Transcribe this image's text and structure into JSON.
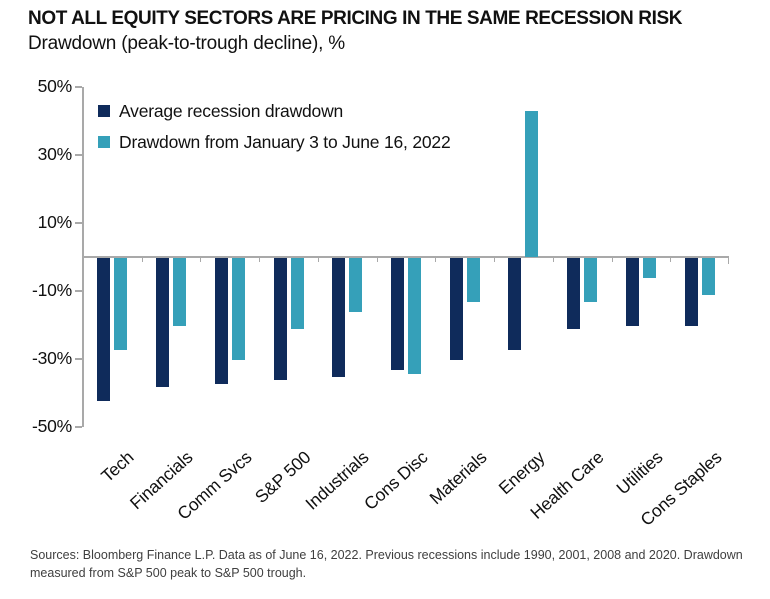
{
  "chart_data": {
    "type": "bar",
    "title": "NOT ALL EQUITY SECTORS ARE PRICING IN THE SAME RECESSION RISK",
    "subtitle": "Drawdown (peak-to-trough decline), %",
    "unit": "%",
    "categories": [
      "Tech",
      "Financials",
      "Comm Svcs",
      "S&P 500",
      "Industrials",
      "Cons Disc",
      "Materials",
      "Energy",
      "Health Care",
      "Utilities",
      "Cons Staples"
    ],
    "series": [
      {
        "name": "Average recession drawdown",
        "color": "#0F2B5B",
        "values": [
          -42,
          -38,
          -37,
          -36,
          -35,
          -33,
          -30,
          -27,
          -21,
          -20,
          -20
        ]
      },
      {
        "name": "Drawdown from January 3 to June 16, 2022",
        "color": "#35A0B9",
        "values": [
          -27,
          -20,
          -30,
          -21,
          -16,
          -34,
          -13,
          43,
          -13,
          -6,
          -11
        ]
      }
    ],
    "ylim": [
      -50,
      50
    ],
    "yticks": [
      50,
      30,
      10,
      -10,
      -30,
      -50
    ],
    "ytick_labels": [
      "50%",
      "30%",
      "10%",
      "-10%",
      "-30%",
      "-50%"
    ],
    "grid": false,
    "legend_position": "top-left",
    "axis_color": "#A9A9A9"
  },
  "footer": {
    "source_text": "Sources: Bloomberg Finance L.P. Data as of June 16, 2022. Previous recessions include 1990, 2001, 2008 and 2020. Drawdown measured from S&P 500 peak to S&P 500 trough."
  }
}
